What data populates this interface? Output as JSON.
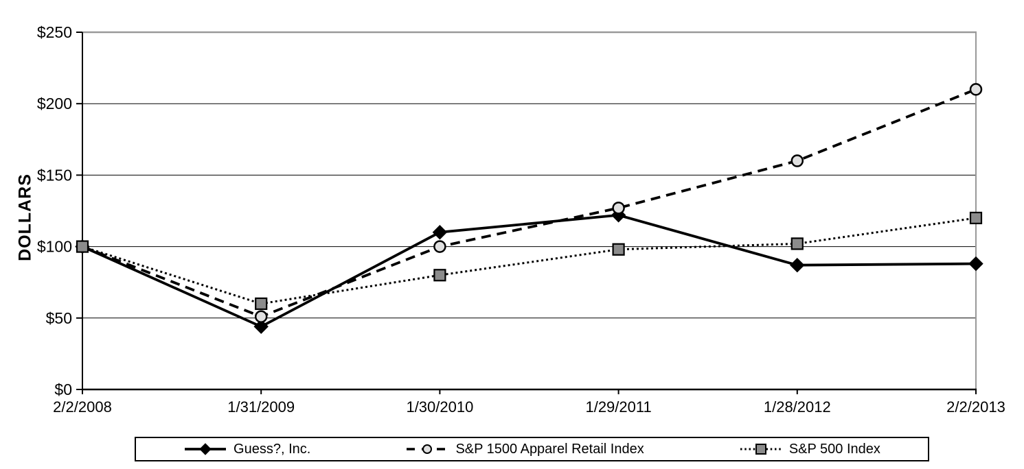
{
  "chart_data": {
    "type": "line",
    "title": "",
    "xlabel": "",
    "ylabel": "DOLLARS",
    "ylim": [
      0,
      250
    ],
    "y_tick_step": 50,
    "y_ticks": [
      "$0",
      "$50",
      "$100",
      "$150",
      "$200",
      "$250"
    ],
    "grid": true,
    "legend_position": "bottom",
    "categories": [
      "2/2/2008",
      "1/31/2009",
      "1/30/2010",
      "1/29/2011",
      "1/28/2012",
      "2/2/2013"
    ],
    "series": [
      {
        "name": "Guess?, Inc.",
        "values": [
          100,
          44,
          110,
          122,
          87,
          88
        ],
        "line_style": "solid",
        "marker": "diamond",
        "color": "#000000",
        "marker_fill": "#000000"
      },
      {
        "name": "S&P 1500 Apparel Retail Index",
        "values": [
          100,
          51,
          100,
          127,
          160,
          210
        ],
        "line_style": "dashed",
        "marker": "circle",
        "color": "#000000",
        "marker_fill": "#e0e0e0"
      },
      {
        "name": "S&P 500 Index",
        "values": [
          100,
          60,
          80,
          98,
          102,
          120
        ],
        "line_style": "dotted",
        "marker": "square",
        "color": "#000000",
        "marker_fill": "#8c8c8c"
      }
    ],
    "colors": {
      "background": "#ffffff",
      "axis": "#000000",
      "gridline": "#000000",
      "plot_border_gray": "#999999",
      "text": "#000000"
    }
  }
}
